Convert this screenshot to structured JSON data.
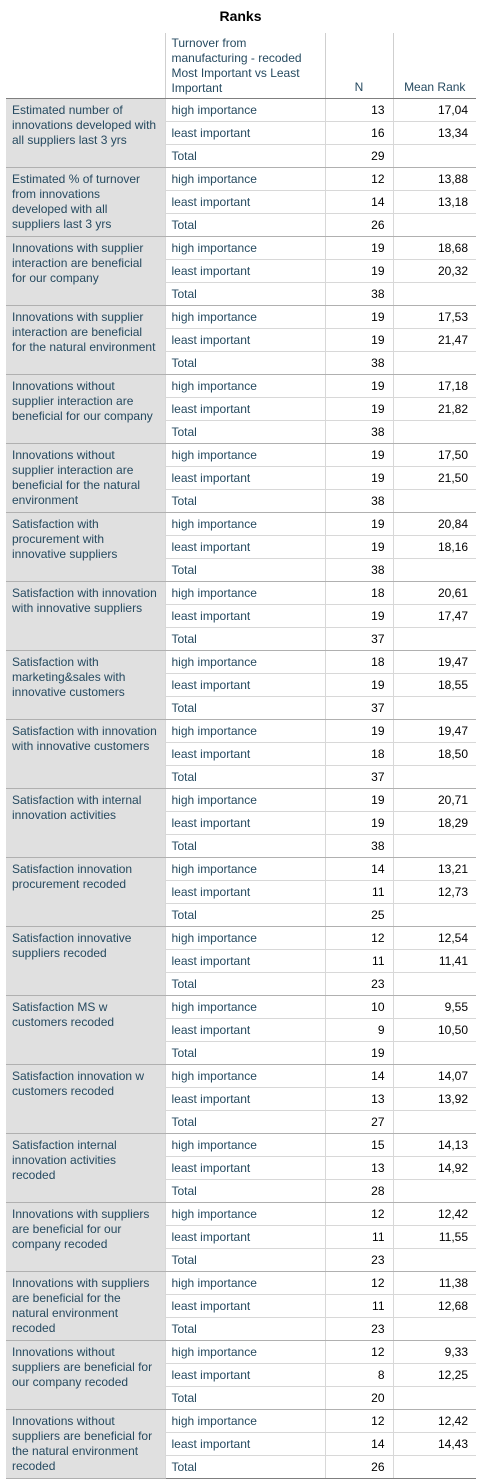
{
  "title": "Ranks",
  "header": {
    "group_col": "Turnover from manufacturing - recoded Most Important vs Least Important",
    "n_col": "N",
    "mean_rank_col": "Mean Rank"
  },
  "rows": [
    {
      "label": "Estimated number of innovations developed with all suppliers last 3 yrs",
      "cells": [
        [
          "high importance",
          "13",
          "17,04"
        ],
        [
          "least important",
          "16",
          "13,34"
        ],
        [
          "Total",
          "29",
          ""
        ]
      ]
    },
    {
      "label": "Estimated % of turnover from innovations developed with all suppliers last 3 yrs",
      "cells": [
        [
          "high importance",
          "12",
          "13,88"
        ],
        [
          "least important",
          "14",
          "13,18"
        ],
        [
          "Total",
          "26",
          ""
        ]
      ]
    },
    {
      "label": "Innovations with supplier interaction are beneficial for our company",
      "cells": [
        [
          "high importance",
          "19",
          "18,68"
        ],
        [
          "least important",
          "19",
          "20,32"
        ],
        [
          "Total",
          "38",
          ""
        ]
      ]
    },
    {
      "label": "Innovations with supplier interaction are beneficial for the natural environment",
      "cells": [
        [
          "high importance",
          "19",
          "17,53"
        ],
        [
          "least important",
          "19",
          "21,47"
        ],
        [
          "Total",
          "38",
          ""
        ]
      ]
    },
    {
      "label": "Innovations without supplier interaction are beneficial for our company",
      "cells": [
        [
          "high importance",
          "19",
          "17,18"
        ],
        [
          "least important",
          "19",
          "21,82"
        ],
        [
          "Total",
          "38",
          ""
        ]
      ]
    },
    {
      "label": "Innovations without supplier interaction are beneficial for the natural environment",
      "cells": [
        [
          "high importance",
          "19",
          "17,50"
        ],
        [
          "least important",
          "19",
          "21,50"
        ],
        [
          "Total",
          "38",
          ""
        ]
      ]
    },
    {
      "label": "Satisfaction with procurement with innovative suppliers",
      "cells": [
        [
          "high importance",
          "19",
          "20,84"
        ],
        [
          "least important",
          "19",
          "18,16"
        ],
        [
          "Total",
          "38",
          ""
        ]
      ]
    },
    {
      "label": "Satisfaction with innovation with innovative suppliers",
      "cells": [
        [
          "high importance",
          "18",
          "20,61"
        ],
        [
          "least important",
          "19",
          "17,47"
        ],
        [
          "Total",
          "37",
          ""
        ]
      ]
    },
    {
      "label": "Satisfaction with marketing&sales with innovative customers",
      "cells": [
        [
          "high importance",
          "18",
          "19,47"
        ],
        [
          "least important",
          "19",
          "18,55"
        ],
        [
          "Total",
          "37",
          ""
        ]
      ]
    },
    {
      "label": "Satisfaction with innovation with innovative customers",
      "cells": [
        [
          "high importance",
          "19",
          "19,47"
        ],
        [
          "least important",
          "18",
          "18,50"
        ],
        [
          "Total",
          "37",
          ""
        ]
      ]
    },
    {
      "label": "Satisfaction with internal innovation activities",
      "cells": [
        [
          "high importance",
          "19",
          "20,71"
        ],
        [
          "least important",
          "19",
          "18,29"
        ],
        [
          "Total",
          "38",
          ""
        ]
      ]
    },
    {
      "label": "Satisfaction innovation procurement recoded",
      "cells": [
        [
          "high importance",
          "14",
          "13,21"
        ],
        [
          "least important",
          "11",
          "12,73"
        ],
        [
          "Total",
          "25",
          ""
        ]
      ]
    },
    {
      "label": "Satisfaction innovative suppliers recoded",
      "cells": [
        [
          "high importance",
          "12",
          "12,54"
        ],
        [
          "least important",
          "11",
          "11,41"
        ],
        [
          "Total",
          "23",
          ""
        ]
      ]
    },
    {
      "label": "Satisfaction MS w customers recoded",
      "cells": [
        [
          "high importance",
          "10",
          "9,55"
        ],
        [
          "least important",
          "9",
          "10,50"
        ],
        [
          "Total",
          "19",
          ""
        ]
      ]
    },
    {
      "label": "Satisfaction innovation w customers recoded",
      "cells": [
        [
          "high importance",
          "14",
          "14,07"
        ],
        [
          "least important",
          "13",
          "13,92"
        ],
        [
          "Total",
          "27",
          ""
        ]
      ]
    },
    {
      "label": "Satisfaction internal innovation activities recoded",
      "cells": [
        [
          "high importance",
          "15",
          "14,13"
        ],
        [
          "least important",
          "13",
          "14,92"
        ],
        [
          "Total",
          "28",
          ""
        ]
      ]
    },
    {
      "label": "Innovations with suppliers are beneficial for our company recoded",
      "cells": [
        [
          "high importance",
          "12",
          "12,42"
        ],
        [
          "least important",
          "11",
          "11,55"
        ],
        [
          "Total",
          "23",
          ""
        ]
      ]
    },
    {
      "label": "Innovations with suppliers are beneficial for the natural environment recoded",
      "cells": [
        [
          "high importance",
          "12",
          "11,38"
        ],
        [
          "least important",
          "11",
          "12,68"
        ],
        [
          "Total",
          "23",
          ""
        ]
      ]
    },
    {
      "label": "Innovations without suppliers are beneficial for our company recoded",
      "cells": [
        [
          "high importance",
          "12",
          "9,33"
        ],
        [
          "least important",
          "8",
          "12,25"
        ],
        [
          "Total",
          "20",
          ""
        ]
      ]
    },
    {
      "label": "Innovations without suppliers are beneficial for the natural environment recoded",
      "cells": [
        [
          "high importance",
          "12",
          "12,42"
        ],
        [
          "least important",
          "14",
          "14,43"
        ],
        [
          "Total",
          "26",
          ""
        ]
      ]
    }
  ]
}
